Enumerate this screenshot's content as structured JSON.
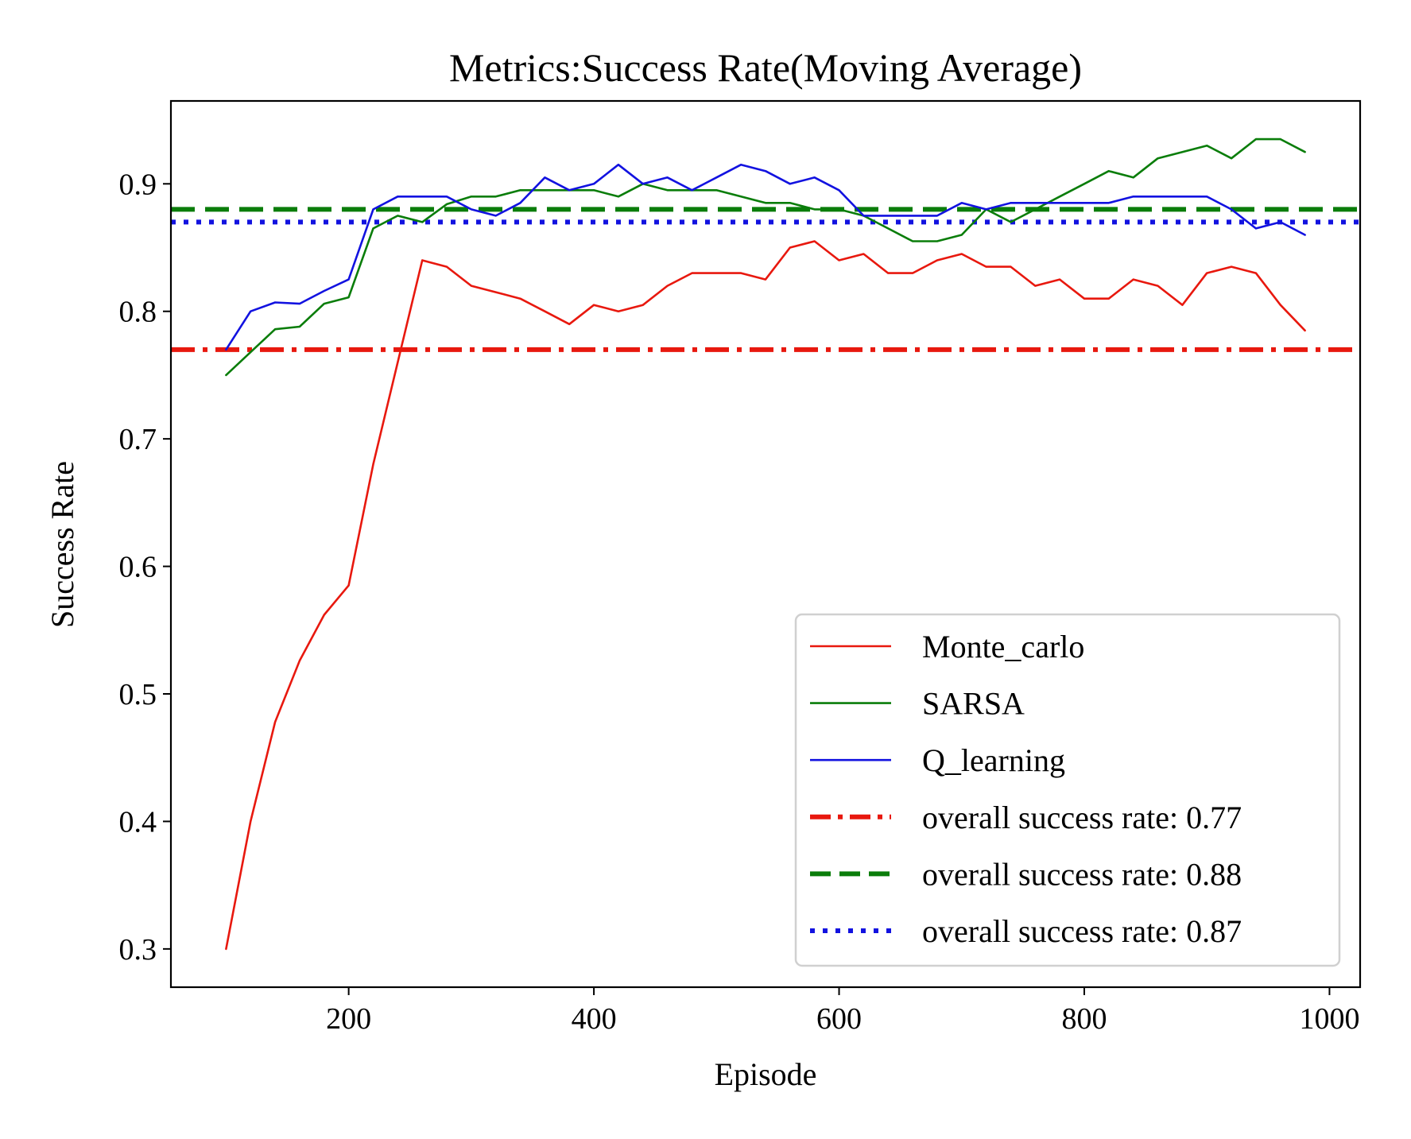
{
  "chart_data": {
    "type": "line",
    "title": "Metrics:Success Rate(Moving Average)",
    "xlabel": "Episode",
    "ylabel": "Success Rate",
    "xlim": [
      55,
      1025
    ],
    "ylim": [
      0.27,
      0.965
    ],
    "xticks": [
      200,
      400,
      600,
      800,
      1000
    ],
    "yticks": [
      0.3,
      0.4,
      0.5,
      0.6,
      0.7,
      0.8,
      0.9
    ],
    "xtick_labels": [
      "200",
      "400",
      "600",
      "800",
      "1000"
    ],
    "ytick_labels": [
      "0.3",
      "0.4",
      "0.5",
      "0.6",
      "0.7",
      "0.8",
      "0.9"
    ],
    "grid": false,
    "legend_position": "lower-right",
    "x": [
      100,
      120,
      140,
      160,
      180,
      200,
      220,
      240,
      260,
      280,
      300,
      320,
      340,
      360,
      380,
      400,
      420,
      440,
      460,
      480,
      500,
      520,
      540,
      560,
      580,
      600,
      620,
      640,
      660,
      680,
      700,
      720,
      740,
      760,
      780,
      800,
      820,
      840,
      860,
      880,
      900,
      920,
      940,
      960,
      980
    ],
    "series": [
      {
        "name": "Monte_carlo",
        "color": "#e8180e",
        "style": "solid",
        "values": [
          0.3,
          0.4,
          0.478,
          0.526,
          0.562,
          0.585,
          0.68,
          0.76,
          0.84,
          0.835,
          0.82,
          0.815,
          0.81,
          0.8,
          0.79,
          0.805,
          0.8,
          0.805,
          0.82,
          0.83,
          0.83,
          0.83,
          0.825,
          0.85,
          0.855,
          0.84,
          0.845,
          0.83,
          0.83,
          0.84,
          0.845,
          0.835,
          0.835,
          0.82,
          0.825,
          0.81,
          0.81,
          0.825,
          0.82,
          0.805,
          0.83,
          0.835,
          0.83,
          0.805,
          0.785
        ]
      },
      {
        "name": "SARSA",
        "color": "#0a7d0a",
        "style": "solid",
        "values": [
          0.75,
          0.768,
          0.786,
          0.788,
          0.806,
          0.811,
          0.865,
          0.875,
          0.87,
          0.884,
          0.89,
          0.89,
          0.895,
          0.895,
          0.895,
          0.895,
          0.89,
          0.9,
          0.895,
          0.895,
          0.895,
          0.89,
          0.885,
          0.885,
          0.88,
          0.88,
          0.875,
          0.865,
          0.855,
          0.855,
          0.86,
          0.88,
          0.87,
          0.88,
          0.89,
          0.9,
          0.91,
          0.905,
          0.92,
          0.925,
          0.93,
          0.92,
          0.935,
          0.935,
          0.925
        ]
      },
      {
        "name": "Q_learning",
        "color": "#1212e0",
        "style": "solid",
        "values": [
          0.77,
          0.8,
          0.807,
          0.806,
          0.816,
          0.825,
          0.88,
          0.89,
          0.89,
          0.89,
          0.88,
          0.875,
          0.885,
          0.905,
          0.895,
          0.9,
          0.915,
          0.9,
          0.905,
          0.895,
          0.905,
          0.915,
          0.91,
          0.9,
          0.905,
          0.895,
          0.875,
          0.875,
          0.875,
          0.875,
          0.885,
          0.88,
          0.885,
          0.885,
          0.885,
          0.885,
          0.885,
          0.89,
          0.89,
          0.89,
          0.89,
          0.88,
          0.865,
          0.87,
          0.86
        ]
      }
    ],
    "reference_lines": [
      {
        "name": "overall success rate: 0.77",
        "value": 0.77,
        "color": "#e8180e",
        "style": "dashdot"
      },
      {
        "name": "overall success rate: 0.88",
        "value": 0.88,
        "color": "#0a7d0a",
        "style": "dashed"
      },
      {
        "name": "overall success rate: 0.87",
        "value": 0.87,
        "color": "#1212e0",
        "style": "dotted"
      }
    ]
  }
}
